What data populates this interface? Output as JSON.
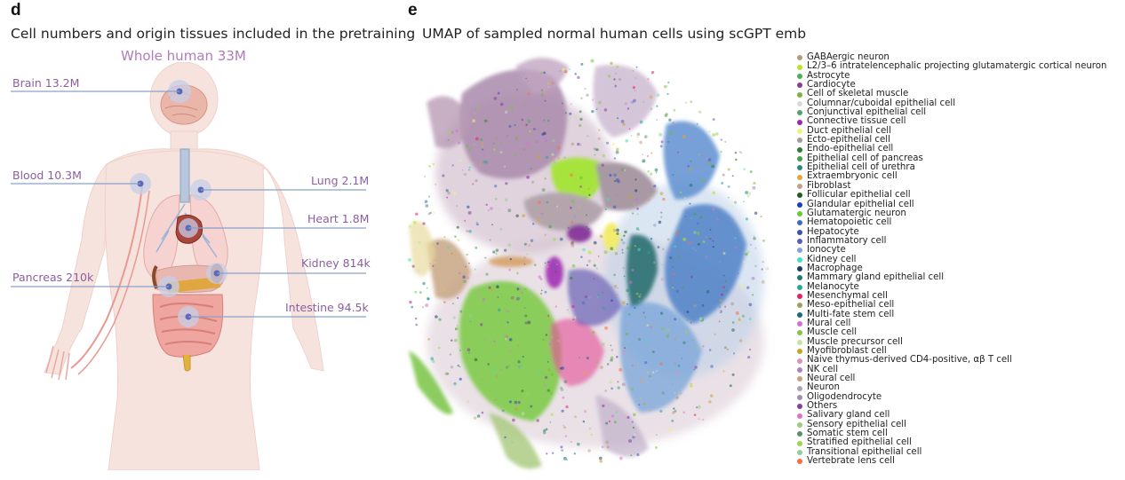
{
  "panel_d": {
    "letter": "d",
    "title": "Cell numbers and origin tissues included in the pretraining",
    "subtitle": "Whole human 33M",
    "tissues": [
      {
        "id": "brain",
        "label": "Brain 13.2M"
      },
      {
        "id": "blood",
        "label": "Blood 10.3M"
      },
      {
        "id": "lung",
        "label": "Lung 2.1M"
      },
      {
        "id": "heart",
        "label": "Heart 1.8M"
      },
      {
        "id": "pancreas",
        "label": "Pancreas 210k"
      },
      {
        "id": "kidney",
        "label": "Kidney 814k"
      },
      {
        "id": "intestine",
        "label": "Intestine 94.5k"
      }
    ]
  },
  "panel_e": {
    "letter": "e",
    "title": "UMAP of sampled normal human cells using scGPT emb",
    "legend": [
      {
        "label": "GABAergic neuron",
        "color": "#b89a7a"
      },
      {
        "label": "L2/3–6 intratelencephalic projecting glutamatergic cortical neuron",
        "color": "#b5e61d"
      },
      {
        "label": "Astrocyte",
        "color": "#4caf50"
      },
      {
        "label": "Cardiocyte",
        "color": "#8e3b8e"
      },
      {
        "label": "Cell of skeletal muscle",
        "color": "#7cb342"
      },
      {
        "label": "Columnar/cuboidal epithelial cell",
        "color": "#d8d8d8"
      },
      {
        "label": "Conjunctival epithelial cell",
        "color": "#5aa06a"
      },
      {
        "label": "Connective tissue cell",
        "color": "#9c27b0"
      },
      {
        "label": "Duct epithelial cell",
        "color": "#f3f07a"
      },
      {
        "label": "Ecto-epithelial cell",
        "color": "#a79a9a"
      },
      {
        "label": "Endo-epithelial cell",
        "color": "#2e7d32"
      },
      {
        "label": "Epithelial cell of pancreas",
        "color": "#43a047"
      },
      {
        "label": "Epithelial cell of urethra",
        "color": "#2a8a7a"
      },
      {
        "label": "Extraembryonic cell",
        "color": "#e6a23c"
      },
      {
        "label": "Fibroblast",
        "color": "#c8a08a"
      },
      {
        "label": "Follicular epithelial cell",
        "color": "#1b5e20"
      },
      {
        "label": "Glandular epithelial cell",
        "color": "#1a3fc4"
      },
      {
        "label": "Glutamatergic neuron",
        "color": "#66cc33"
      },
      {
        "label": "Hematopoietic cell",
        "color": "#3a6fc4"
      },
      {
        "label": "Hepatocyte",
        "color": "#3f51b5"
      },
      {
        "label": "Inflammatory cell",
        "color": "#5c5cbf"
      },
      {
        "label": "Ionocyte",
        "color": "#8aa0d8"
      },
      {
        "label": "Kidney cell",
        "color": "#40e0c0"
      },
      {
        "label": "Macrophage",
        "color": "#1f3b6f"
      },
      {
        "label": "Mammary gland epithelial cell",
        "color": "#1e7a6a"
      },
      {
        "label": "Melanocyte",
        "color": "#26a69a"
      },
      {
        "label": "Mesenchymal cell",
        "color": "#e91e63"
      },
      {
        "label": "Meso-epithelial cell",
        "color": "#a0a060"
      },
      {
        "label": "Multi-fate stem cell",
        "color": "#1a6a7a"
      },
      {
        "label": "Mural cell",
        "color": "#d070d0"
      },
      {
        "label": "Muscle cell",
        "color": "#8bc34a"
      },
      {
        "label": "Muscle precursor cell",
        "color": "#c5e1a5"
      },
      {
        "label": "Myofibroblast cell",
        "color": "#c9a227"
      },
      {
        "label": "Naive thymus-derived CD4-positive, αβ T cell",
        "color": "#e090c0"
      },
      {
        "label": "NK cell",
        "color": "#b080c0"
      },
      {
        "label": "Neural cell",
        "color": "#c8a07a"
      },
      {
        "label": "Neuron",
        "color": "#b0a0b8"
      },
      {
        "label": "Oligodendrocyte",
        "color": "#a090a8"
      },
      {
        "label": "Others",
        "color": "#8a3d9c"
      },
      {
        "label": "Salivary gland cell",
        "color": "#e070d0"
      },
      {
        "label": "Sensory epithelial cell",
        "color": "#9acd7a"
      },
      {
        "label": "Somatic stem cell",
        "color": "#5a8f6a"
      },
      {
        "label": "Stratified epithelial cell",
        "color": "#9bd84a"
      },
      {
        "label": "Transitional epithelial cell",
        "color": "#8fd0a0"
      },
      {
        "label": "Vertebrate lens cell",
        "color": "#ff6a3d"
      }
    ]
  }
}
